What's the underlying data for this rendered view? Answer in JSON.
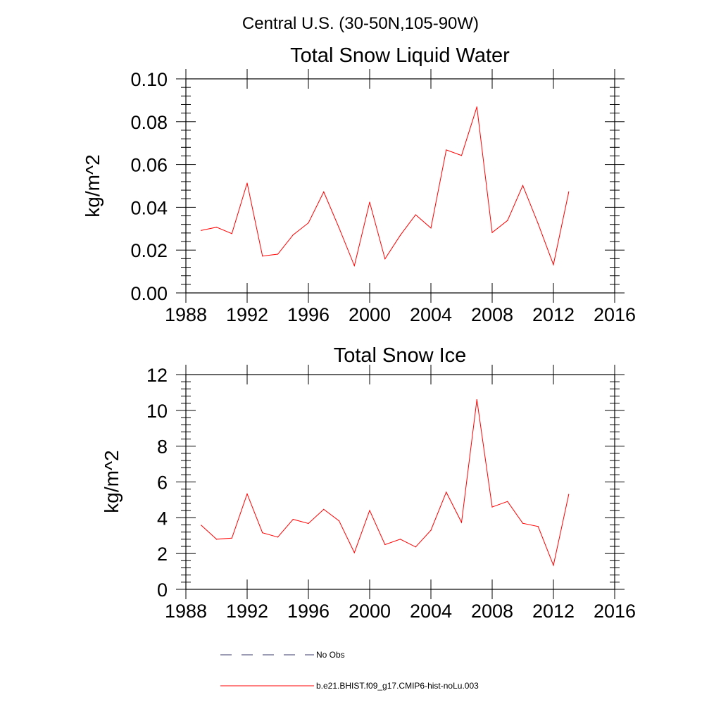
{
  "page": {
    "suptitle": "Central U.S. (30-50N,105-90W)"
  },
  "chart_data": [
    {
      "type": "line",
      "title": "Total Snow Liquid Water",
      "xlabel": "",
      "ylabel": "kg/m^2",
      "xlim": [
        1988,
        2016
      ],
      "ylim": [
        0,
        0.1
      ],
      "xticks": [
        1988,
        1992,
        1996,
        2000,
        2004,
        2008,
        2012,
        2016
      ],
      "xtick_labels": [
        "1988",
        "1992",
        "1996",
        "2000",
        "2004",
        "2008",
        "2012",
        "2016"
      ],
      "yticks": [
        0,
        0.02,
        0.04,
        0.06,
        0.08,
        0.1
      ],
      "ytick_labels": [
        "0.00",
        "0.02",
        "0.04",
        "0.06",
        "0.08",
        "0.10"
      ],
      "x": [
        1989,
        1990,
        1991,
        1992,
        1993,
        1994,
        1995,
        1996,
        1997,
        1998,
        1999,
        2000,
        2001,
        2002,
        2003,
        2004,
        2005,
        2006,
        2007,
        2008,
        2009,
        2010,
        2011,
        2012,
        2013
      ],
      "series": [
        {
          "name": "b.e21.BHIST.f09_g17.CMIP6-hist-noLu.003",
          "color": "#ff0000",
          "values": [
            0.0292,
            0.0307,
            0.0277,
            0.0513,
            0.0172,
            0.0181,
            0.0271,
            0.0327,
            0.0472,
            0.0304,
            0.0127,
            0.0424,
            0.0159,
            0.0269,
            0.0365,
            0.0303,
            0.0668,
            0.0642,
            0.0869,
            0.0282,
            0.0338,
            0.0502,
            0.0323,
            0.0132,
            0.0472
          ]
        }
      ]
    },
    {
      "type": "line",
      "title": "Total Snow Ice",
      "xlabel": "",
      "ylabel": "kg/m^2",
      "xlim": [
        1988,
        2016
      ],
      "ylim": [
        0,
        12
      ],
      "xticks": [
        1988,
        1992,
        1996,
        2000,
        2004,
        2008,
        2012,
        2016
      ],
      "xtick_labels": [
        "1988",
        "1992",
        "1996",
        "2000",
        "2004",
        "2008",
        "2012",
        "2016"
      ],
      "yticks": [
        0,
        2,
        4,
        6,
        8,
        10,
        12
      ],
      "ytick_labels": [
        "0",
        "2",
        "4",
        "6",
        "8",
        "10",
        "12"
      ],
      "x": [
        1989,
        1990,
        1991,
        1992,
        1993,
        1994,
        1995,
        1996,
        1997,
        1998,
        1999,
        2000,
        2001,
        2002,
        2003,
        2004,
        2005,
        2006,
        2007,
        2008,
        2009,
        2010,
        2011,
        2012,
        2013
      ],
      "series": [
        {
          "name": "b.e21.BHIST.f09_g17.CMIP6-hist-noLu.003",
          "color": "#ff0000",
          "values": [
            3.58,
            2.8,
            2.86,
            5.33,
            3.16,
            2.92,
            3.91,
            3.68,
            4.47,
            3.83,
            2.05,
            4.41,
            2.5,
            2.8,
            2.37,
            3.3,
            5.43,
            3.74,
            10.6,
            4.6,
            4.91,
            3.69,
            3.51,
            1.34,
            5.31
          ]
        }
      ]
    }
  ],
  "legend": {
    "placement": "bottom",
    "entries": [
      {
        "label": "No Obs",
        "style": "dashed",
        "color": "#3a3a6a"
      },
      {
        "label": "b.e21.BHIST.f09_g17.CMIP6-hist-noLu.003",
        "style": "solid",
        "color": "#ff0000"
      }
    ]
  }
}
